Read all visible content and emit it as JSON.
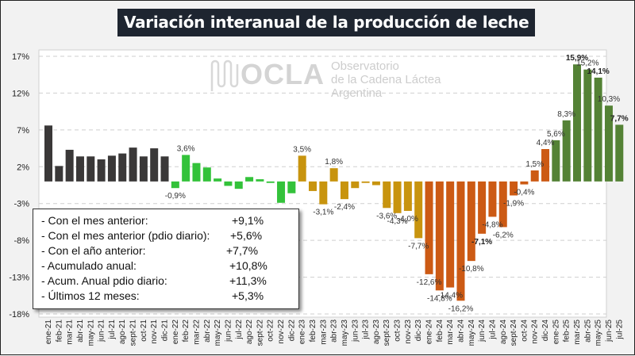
{
  "page": {
    "title": "Variación interanual de la producción de leche"
  },
  "logo": {
    "name": "OCLA",
    "line1": "Observatorio",
    "line2": "de la Cadena Láctea",
    "line3": "Argentina",
    "icon": "milk-wave-icon"
  },
  "info_box": {
    "rows": [
      {
        "label": "- Con el mes anterior:",
        "value": "+9,1%"
      },
      {
        "label": "- Con el mes anterior (pdio diario):",
        "value": "+5,6%"
      },
      {
        "label": "- Con el año anterior:",
        "value": "+7,7%"
      },
      {
        "label": "- Acumulado anual:",
        "value": "+10,8%"
      },
      {
        "label": "- Acum. Anual pdio diario:",
        "value": "+11,3%"
      },
      {
        "label": "- Últimos 12 meses:",
        "value": "+5,3%"
      }
    ]
  },
  "colors": {
    "y2021": "#3a3838",
    "y2022": "#33c23a",
    "y2023": "#c8940e",
    "y2024": "#cc5a14",
    "y2025": "#548235",
    "background": "#f2f2f2",
    "plot_background": "#ffffff",
    "title_background": "#1e2530"
  },
  "chart_data": {
    "type": "bar",
    "title": "Variación interanual de la producción de leche",
    "xlabel": "",
    "ylabel": "",
    "ylim": [
      -18,
      17
    ],
    "yticks": [
      17,
      12,
      7,
      2,
      -3,
      -8,
      -13,
      -18
    ],
    "ytick_labels": [
      "17%",
      "12%",
      "7%",
      "2%",
      "-3%",
      "-8%",
      "-13%",
      "-18%"
    ],
    "grid": true,
    "legend": "none",
    "categories": [
      "ene-21",
      "feb-21",
      "mar-21",
      "abr-21",
      "may-21",
      "jun-21",
      "jul-21",
      "ago-21",
      "sept-21",
      "oct-21",
      "nov-21",
      "dic-21",
      "ene-22",
      "feb-22",
      "mar-22",
      "abr-22",
      "may-22",
      "jun-22",
      "jul-22",
      "ago-22",
      "sept-22",
      "oct-22",
      "nov-22",
      "dic-22",
      "ene-23",
      "feb-23",
      "mar-23",
      "abr-23",
      "may-23",
      "jun-23",
      "jul-23",
      "ago-23",
      "sept-23",
      "oct-23",
      "nov-23",
      "dic-23",
      "ene-24",
      "feb-24",
      "mar-24",
      "abr-24",
      "may-24",
      "jun-24",
      "jul-24",
      "ago-24",
      "sept-24",
      "oct-24",
      "nov-24",
      "dic-24",
      "ene-25",
      "feb-25",
      "mar-25",
      "abr-25",
      "may-25",
      "jun-25",
      "jul-25"
    ],
    "values": [
      7.6,
      2.1,
      4.3,
      3.4,
      3.4,
      3.0,
      3.5,
      3.8,
      4.6,
      3.4,
      4.5,
      3.4,
      -0.9,
      3.6,
      2.5,
      1.9,
      0.4,
      -0.6,
      -1.0,
      0.6,
      0.3,
      -0.2,
      -2.9,
      -1.6,
      3.5,
      -1.3,
      -3.1,
      1.8,
      -2.4,
      -0.9,
      -0.2,
      -0.5,
      -3.6,
      -4.3,
      -4.0,
      -7.7,
      -12.6,
      -14.8,
      -14.4,
      -16.2,
      -10.8,
      -7.1,
      -4.8,
      -6.2,
      -1.9,
      -0.4,
      1.5,
      4.4,
      5.6,
      8.3,
      15.9,
      15.2,
      14.1,
      10.3,
      7.7
    ],
    "year_groups": [
      "2021",
      "2021",
      "2021",
      "2021",
      "2021",
      "2021",
      "2021",
      "2021",
      "2021",
      "2021",
      "2021",
      "2021",
      "2022",
      "2022",
      "2022",
      "2022",
      "2022",
      "2022",
      "2022",
      "2022",
      "2022",
      "2022",
      "2022",
      "2022",
      "2023",
      "2023",
      "2023",
      "2023",
      "2023",
      "2023",
      "2023",
      "2023",
      "2023",
      "2023",
      "2023",
      "2023",
      "2024",
      "2024",
      "2024",
      "2024",
      "2024",
      "2024",
      "2024",
      "2024",
      "2024",
      "2024",
      "2024",
      "2024",
      "2025",
      "2025",
      "2025",
      "2025",
      "2025",
      "2025",
      "2025"
    ],
    "data_labels": [
      {
        "index": 12,
        "text": "-0,9%"
      },
      {
        "index": 13,
        "text": "3,6%"
      },
      {
        "index": 24,
        "text": "3,5%"
      },
      {
        "index": 26,
        "text": "-3,1%"
      },
      {
        "index": 27,
        "text": "1,8%"
      },
      {
        "index": 28,
        "text": "-2,4%"
      },
      {
        "index": 32,
        "text": "-3,6%"
      },
      {
        "index": 33,
        "text": "-4,3%"
      },
      {
        "index": 34,
        "text": "-4,0%"
      },
      {
        "index": 35,
        "text": "-7,7%"
      },
      {
        "index": 36,
        "text": "-12,6%"
      },
      {
        "index": 37,
        "text": "-14,8%"
      },
      {
        "index": 38,
        "text": "-14,4%"
      },
      {
        "index": 39,
        "text": "-16,2%"
      },
      {
        "index": 40,
        "text": "-10,8%"
      },
      {
        "index": 41,
        "text": "-7,1%",
        "bold": true
      },
      {
        "index": 42,
        "text": "-4,8%"
      },
      {
        "index": 43,
        "text": "-6,2%"
      },
      {
        "index": 44,
        "text": "-1,9%"
      },
      {
        "index": 45,
        "text": "-0,4%"
      },
      {
        "index": 46,
        "text": "1,5%"
      },
      {
        "index": 47,
        "text": "4,4%"
      },
      {
        "index": 48,
        "text": "5,6%"
      },
      {
        "index": 49,
        "text": "8,3%"
      },
      {
        "index": 50,
        "text": "15,9%",
        "bold": true
      },
      {
        "index": 51,
        "text": "15,2%"
      },
      {
        "index": 52,
        "text": "14,1%",
        "bold": true
      },
      {
        "index": 53,
        "text": "10,3%"
      },
      {
        "index": 54,
        "text": "7,7%",
        "bold": true
      }
    ]
  }
}
